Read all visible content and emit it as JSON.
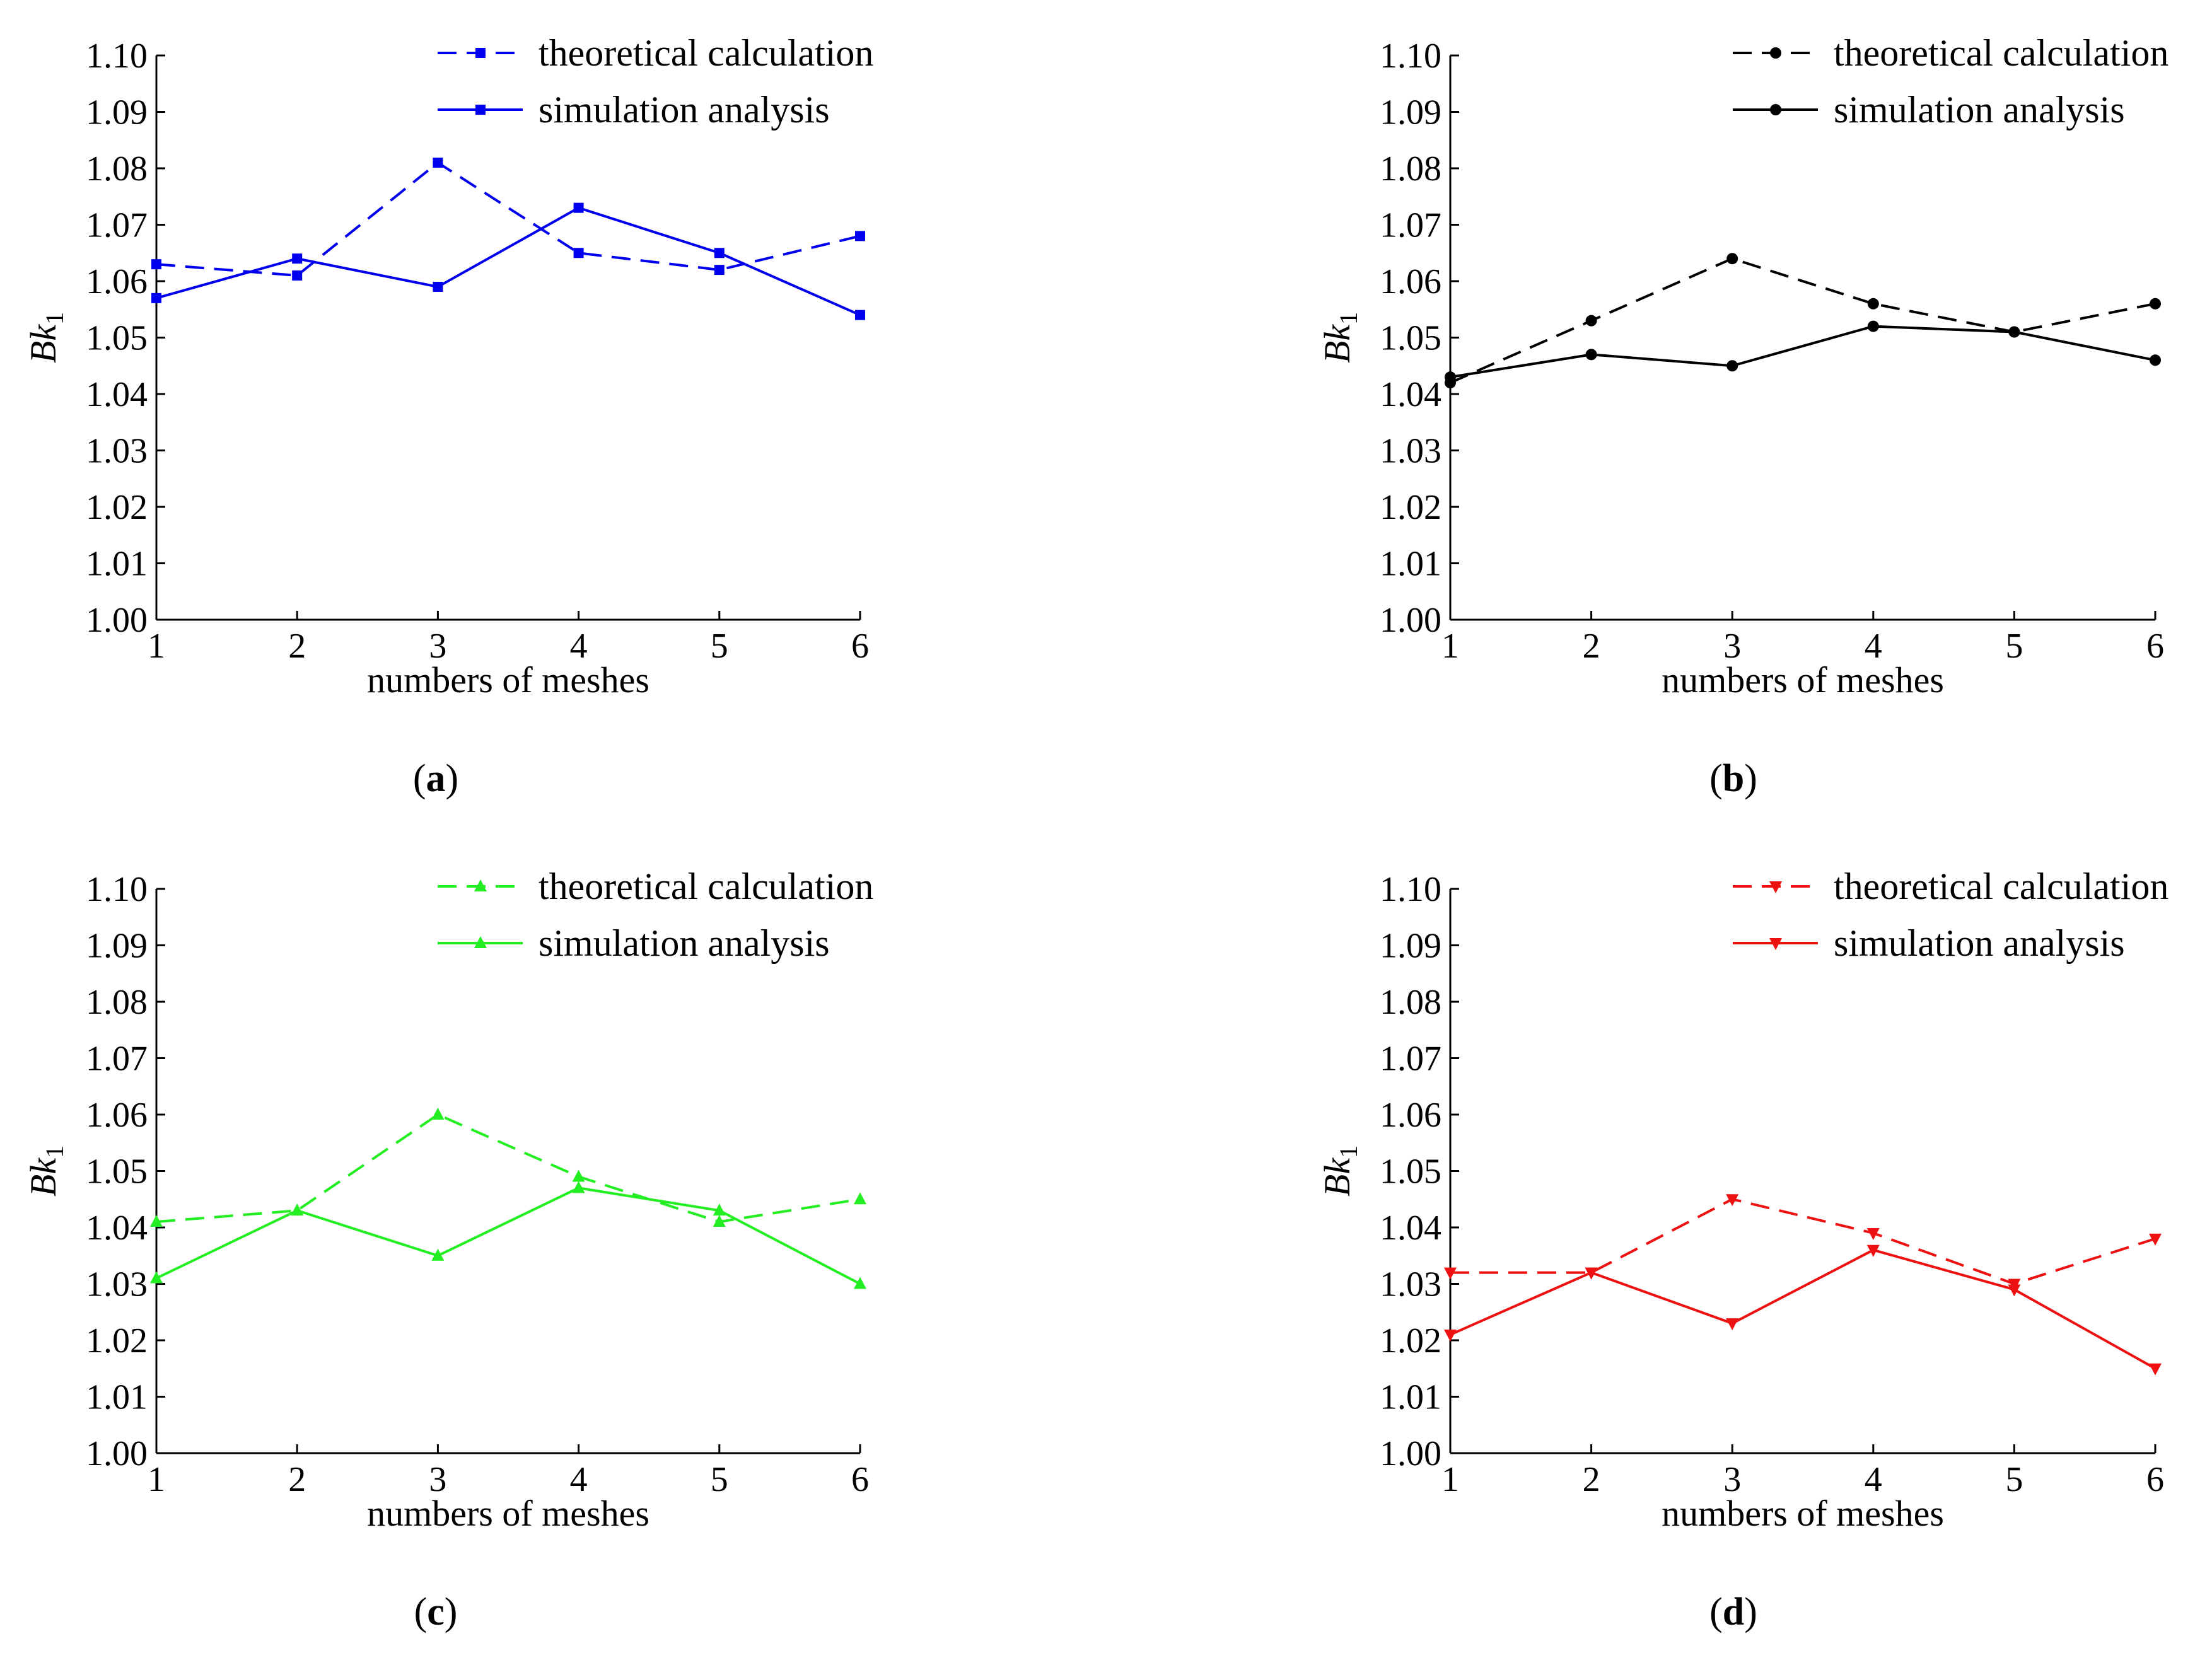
{
  "chart_data": [
    {
      "type": "line",
      "panel_label": "(a)",
      "panel_letter": "a",
      "color": "#0000ee",
      "marker": "square",
      "x": [
        1,
        2,
        3,
        4,
        5,
        6
      ],
      "xlabel": "numbers of meshes",
      "ylabel": "Bk",
      "ylabel_sub": "1",
      "ylim": [
        1.0,
        1.1
      ],
      "yticks": [
        "1.00",
        "1.01",
        "1.02",
        "1.03",
        "1.04",
        "1.05",
        "1.06",
        "1.07",
        "1.08",
        "1.09",
        "1.10"
      ],
      "xticks": [
        "1",
        "2",
        "3",
        "4",
        "5",
        "6"
      ],
      "legend_position": "top-right",
      "series": [
        {
          "name": "theoretical calculation",
          "style": "dashed",
          "values": [
            1.063,
            1.061,
            1.081,
            1.065,
            1.062,
            1.068
          ]
        },
        {
          "name": "simulation analysis",
          "style": "solid",
          "values": [
            1.057,
            1.064,
            1.059,
            1.073,
            1.065,
            1.054
          ]
        }
      ]
    },
    {
      "type": "line",
      "panel_label": "(b)",
      "panel_letter": "b",
      "color": "#000000",
      "marker": "circle",
      "x": [
        1,
        2,
        3,
        4,
        5,
        6
      ],
      "xlabel": "numbers of meshes",
      "ylabel": "Bk",
      "ylabel_sub": "1",
      "ylim": [
        1.0,
        1.1
      ],
      "yticks": [
        "1.00",
        "1.01",
        "1.02",
        "1.03",
        "1.04",
        "1.05",
        "1.06",
        "1.07",
        "1.08",
        "1.09",
        "1.10"
      ],
      "xticks": [
        "1",
        "2",
        "3",
        "4",
        "5",
        "6"
      ],
      "legend_position": "top-right",
      "series": [
        {
          "name": "theoretical calculation",
          "style": "dashed",
          "values": [
            1.042,
            1.053,
            1.064,
            1.056,
            1.051,
            1.056
          ]
        },
        {
          "name": "simulation analysis",
          "style": "solid",
          "values": [
            1.043,
            1.047,
            1.045,
            1.052,
            1.051,
            1.046
          ]
        }
      ]
    },
    {
      "type": "line",
      "panel_label": "(c)",
      "panel_letter": "c",
      "color": "#22ee22",
      "marker": "triangle-up",
      "x": [
        1,
        2,
        3,
        4,
        5,
        6
      ],
      "xlabel": "numbers of meshes",
      "ylabel": "Bk",
      "ylabel_sub": "1",
      "ylim": [
        1.0,
        1.1
      ],
      "yticks": [
        "1.00",
        "1.01",
        "1.02",
        "1.03",
        "1.04",
        "1.05",
        "1.06",
        "1.07",
        "1.08",
        "1.09",
        "1.10"
      ],
      "xticks": [
        "1",
        "2",
        "3",
        "4",
        "5",
        "6"
      ],
      "legend_position": "top-right",
      "series": [
        {
          "name": "theoretical calculation",
          "style": "dashed",
          "values": [
            1.041,
            1.043,
            1.06,
            1.049,
            1.041,
            1.045
          ]
        },
        {
          "name": "simulation analysis",
          "style": "solid",
          "values": [
            1.031,
            1.043,
            1.035,
            1.047,
            1.043,
            1.03
          ]
        }
      ]
    },
    {
      "type": "line",
      "panel_label": "(d)",
      "panel_letter": "d",
      "color": "#ee1111",
      "marker": "triangle-down",
      "x": [
        1,
        2,
        3,
        4,
        5,
        6
      ],
      "xlabel": "numbers of meshes",
      "ylabel": "Bk",
      "ylabel_sub": "1",
      "ylim": [
        1.0,
        1.1
      ],
      "yticks": [
        "1.00",
        "1.01",
        "1.02",
        "1.03",
        "1.04",
        "1.05",
        "1.06",
        "1.07",
        "1.08",
        "1.09",
        "1.10"
      ],
      "xticks": [
        "1",
        "2",
        "3",
        "4",
        "5",
        "6"
      ],
      "legend_position": "top-right",
      "series": [
        {
          "name": "theoretical calculation",
          "style": "dashed",
          "values": [
            1.032,
            1.032,
            1.045,
            1.039,
            1.03,
            1.038
          ]
        },
        {
          "name": "simulation analysis",
          "style": "solid",
          "values": [
            1.021,
            1.032,
            1.023,
            1.036,
            1.029,
            1.015
          ]
        }
      ]
    }
  ]
}
